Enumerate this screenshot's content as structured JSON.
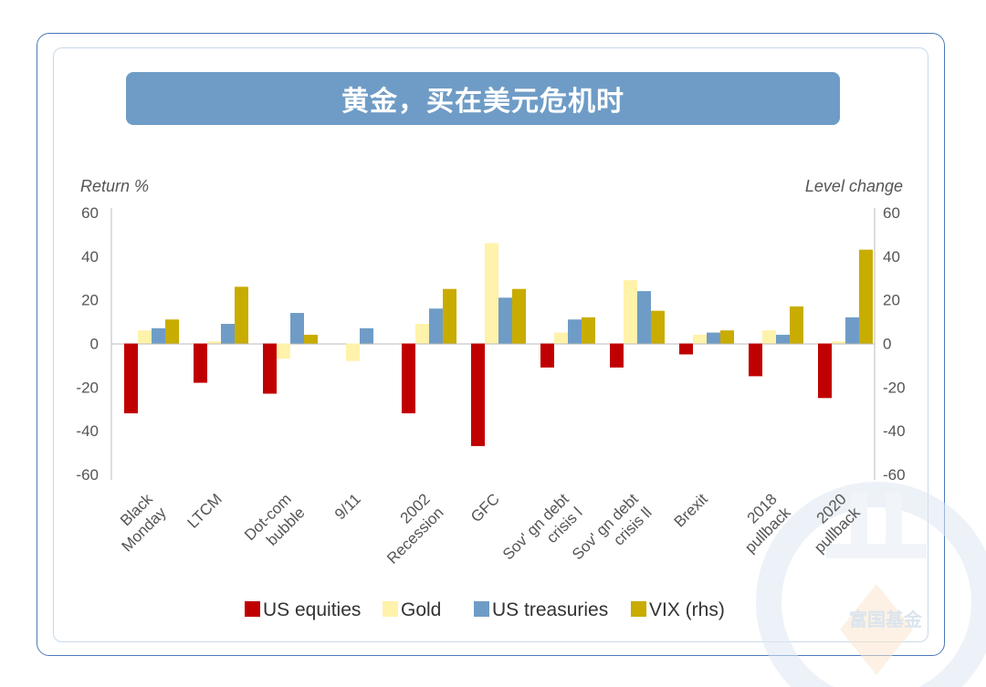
{
  "banner_title": "黄金，买在美元危机时",
  "watermark": "富国基金",
  "chart_data": {
    "type": "bar",
    "left_axis_label": "Return %",
    "right_axis_label": "Level change",
    "ylim": [
      -60,
      60
    ],
    "y_ticks": [
      60,
      40,
      20,
      0,
      -20,
      -40,
      -60
    ],
    "grid": false,
    "legend_position": "bottom",
    "categories": [
      [
        "Black",
        "Monday"
      ],
      [
        "LTCM"
      ],
      [
        "Dot-com",
        "bubble"
      ],
      [
        "9/11"
      ],
      [
        "2002",
        "Recession"
      ],
      [
        "GFC"
      ],
      [
        "Sov' gn debt",
        "crisis l"
      ],
      [
        "Sov' gn debt",
        "crisis ll"
      ],
      [
        "Brexit"
      ],
      [
        "2018",
        "pullback"
      ],
      [
        "2020",
        "pullback"
      ]
    ],
    "series": [
      {
        "name": "US equities",
        "color": "#c00000",
        "values": [
          -32,
          -18,
          -23,
          0,
          -32,
          -47,
          -11,
          -11,
          -5,
          -15,
          -25
        ]
      },
      {
        "name": "Gold",
        "color": "#fff2aa",
        "values": [
          6,
          1,
          -7,
          -8,
          9,
          46,
          5,
          29,
          4,
          6,
          1
        ]
      },
      {
        "name": "US treasuries",
        "color": "#6f9cc6",
        "values": [
          7,
          9,
          14,
          7,
          16,
          21,
          11,
          24,
          5,
          4,
          12
        ]
      },
      {
        "name": "VIX (rhs)",
        "color": "#c9ac00",
        "values": [
          11,
          26,
          4,
          0,
          25,
          25,
          12,
          15,
          6,
          17,
          43
        ]
      }
    ]
  }
}
